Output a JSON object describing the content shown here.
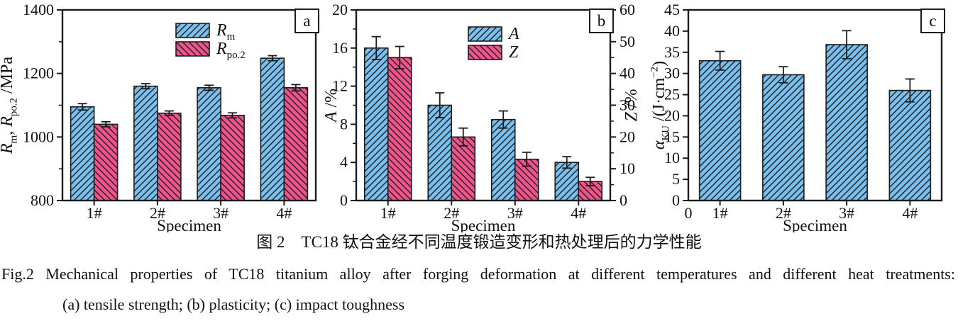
{
  "figure": {
    "caption_zh": "图 2　TC18 钛合金经不同温度锻造变形和热处理后的力学性能",
    "caption_en": "Fig.2 Mechanical properties of TC18 titanium alloy after forging deformation at different temperatures and different heat treatments:",
    "caption_en2": "(a) tensile strength; (b) plasticity; (c) impact toughness"
  },
  "colors": {
    "blue": "#7BBFEC",
    "pink": "#F1538A",
    "hatch": "#20242a",
    "axis": "#1c1c1c",
    "text": "#111111"
  },
  "chart_data": [
    {
      "type": "bar",
      "panel": "a",
      "categories": [
        "1#",
        "2#",
        "3#",
        "4#"
      ],
      "xlabel": "Specimen",
      "ylabel_rich": [
        {
          "t": "R",
          "s": "i"
        },
        {
          "t": "m",
          "s": "sub"
        },
        {
          "t": ", ",
          "s": ""
        },
        {
          "t": "R",
          "s": "i"
        },
        {
          "t": "po.2",
          "s": "sub"
        },
        {
          "t": " /MPa",
          "s": ""
        }
      ],
      "ylim": [
        800,
        1400
      ],
      "yticks": [
        800,
        1000,
        1200,
        1400
      ],
      "yminor": [
        900,
        1100,
        1300
      ],
      "legend_position": "upper-middle",
      "series": [
        {
          "label_rich": [
            {
              "t": "R",
              "s": "i"
            },
            {
              "t": "m",
              "s": "sub"
            }
          ],
          "color": "blue",
          "hatch": "fwd",
          "axis": "left",
          "values": [
            1095,
            1160,
            1155,
            1248
          ],
          "errors": [
            10,
            8,
            8,
            8
          ]
        },
        {
          "label_rich": [
            {
              "t": "R",
              "s": "i"
            },
            {
              "t": "po.2",
              "s": "sub"
            }
          ],
          "color": "pink",
          "hatch": "bwd",
          "axis": "left",
          "values": [
            1040,
            1075,
            1068,
            1155
          ],
          "errors": [
            8,
            7,
            8,
            10
          ]
        }
      ]
    },
    {
      "type": "bar",
      "panel": "b",
      "categories": [
        "1#",
        "2#",
        "3#",
        "4#"
      ],
      "xlabel": "Specimen",
      "ylabel_rich": [
        {
          "t": "A",
          "s": "i"
        },
        {
          "t": " /%",
          "s": ""
        }
      ],
      "y2label_rich": [
        {
          "t": "Z",
          "s": "i"
        },
        {
          "t": " /%",
          "s": ""
        }
      ],
      "ylim": [
        0,
        20
      ],
      "yticks": [
        0,
        4,
        8,
        12,
        16,
        20
      ],
      "yminor": [
        2,
        6,
        10,
        14,
        18
      ],
      "y2lim": [
        0,
        60
      ],
      "y2ticks": [
        0,
        10,
        20,
        30,
        40,
        50,
        60
      ],
      "y2minor": [
        5,
        15,
        25,
        35,
        45,
        55
      ],
      "legend_position": "upper-middle",
      "series": [
        {
          "label_rich": [
            {
              "t": "A",
              "s": "i"
            }
          ],
          "color": "blue",
          "hatch": "fwd",
          "axis": "left",
          "values": [
            16.0,
            10.0,
            8.5,
            4.0
          ],
          "errors": [
            1.2,
            1.3,
            0.9,
            0.6
          ]
        },
        {
          "label_rich": [
            {
              "t": "Z",
              "s": "i"
            }
          ],
          "color": "pink",
          "hatch": "bwd",
          "axis": "right",
          "values": [
            45,
            20,
            13,
            6
          ],
          "errors": [
            3.5,
            2.8,
            2.2,
            1.3
          ]
        }
      ]
    },
    {
      "type": "bar",
      "panel": "c",
      "categories": [
        "1#",
        "2#",
        "3#",
        "4#"
      ],
      "xlabel": "Specimen",
      "origin_zero_label": "0",
      "ylabel_rich": [
        {
          "t": "α",
          "s": "i"
        },
        {
          "t": "KU",
          "s": "sub"
        },
        {
          "t": " /(J·cm",
          "s": ""
        },
        {
          "t": "−2",
          "s": "sup"
        },
        {
          "t": ")",
          "s": ""
        }
      ],
      "ylim": [
        0,
        45
      ],
      "yticks": [
        0,
        5,
        10,
        15,
        20,
        25,
        30,
        35,
        40,
        45
      ],
      "yminor": [],
      "series": [
        {
          "label_rich": [],
          "color": "blue",
          "hatch": "fwd",
          "axis": "left",
          "values": [
            33,
            29.7,
            36.8,
            26
          ],
          "errors": [
            2.2,
            1.9,
            3.3,
            2.7
          ]
        }
      ]
    }
  ]
}
